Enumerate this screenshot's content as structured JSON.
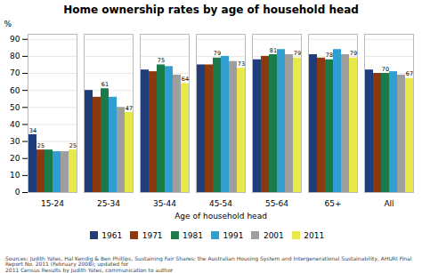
{
  "chart_data": {
    "type": "bar",
    "title": "Home ownership rates by age of household head",
    "xlabel": "Age of household head",
    "ylabel": "%",
    "categories": [
      "15-24",
      "25-34",
      "35-44",
      "45-54",
      "55-64",
      "65+",
      "All"
    ],
    "series": [
      {
        "name": "1961",
        "color": "#1f3d7a",
        "values": [
          34,
          60,
          72,
          75,
          78,
          81,
          72
        ],
        "value_labels": [
          "34",
          null,
          null,
          null,
          null,
          null,
          null
        ]
      },
      {
        "name": "1971",
        "color": "#8b3a0f",
        "values": [
          25,
          56,
          71,
          75,
          80,
          79,
          70
        ],
        "value_labels": [
          "25",
          null,
          null,
          null,
          null,
          null,
          null
        ]
      },
      {
        "name": "1981",
        "color": "#1a7a4a",
        "values": [
          25,
          61,
          75,
          79,
          81,
          78,
          70
        ],
        "value_labels": [
          null,
          "61",
          "75",
          "79",
          "81",
          "78",
          "70"
        ]
      },
      {
        "name": "1991",
        "color": "#2e9fd0",
        "values": [
          24,
          56,
          74,
          80,
          84,
          84,
          71
        ],
        "value_labels": [
          null,
          null,
          null,
          null,
          null,
          null,
          null
        ]
      },
      {
        "name": "2001",
        "color": "#9e9e9e",
        "values": [
          24,
          50,
          69,
          77,
          81,
          81,
          69
        ],
        "value_labels": [
          null,
          null,
          null,
          null,
          null,
          null,
          null
        ]
      },
      {
        "name": "2011",
        "color": "#e8e84a",
        "values": [
          25,
          47,
          64,
          73,
          79,
          79,
          67
        ],
        "value_labels": [
          "25",
          "47",
          "64",
          "73",
          "79",
          "79",
          "67"
        ]
      }
    ],
    "ylim": [
      0,
      93
    ],
    "yticks": [
      0,
      10,
      20,
      30,
      40,
      50,
      60,
      70,
      80,
      90
    ],
    "grid": true,
    "legend": "bottom",
    "caption": "Sources: Judith Yates, Hal Kendig & Ben Phillips, Sustaining Fair Shares: the Australian Housing System and Intergenerational Sustainability, AHURI Final Report No. 2011 (February 2008); updated for\n2011 Census Results by Judith Yates, communication to author"
  }
}
